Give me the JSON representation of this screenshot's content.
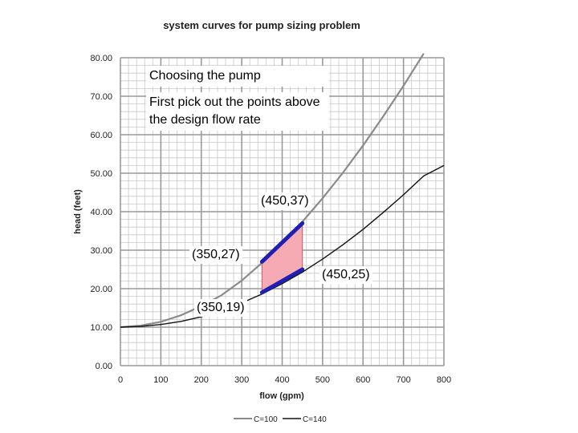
{
  "chart_data": {
    "type": "line",
    "title": "system curves for pump sizing problem",
    "xlabel": "flow (gpm)",
    "ylabel": "head (feet)",
    "xlim": [
      0,
      800
    ],
    "ylim": [
      0,
      80
    ],
    "x_ticks": [
      "0",
      "100",
      "200",
      "300",
      "400",
      "500",
      "600",
      "700",
      "800"
    ],
    "y_ticks": [
      "0.00",
      "10.00",
      "20.00",
      "30.00",
      "40.00",
      "50.00",
      "60.00",
      "70.00",
      "80.00"
    ],
    "grid": true,
    "series": [
      {
        "name": "C=100",
        "color": "#8a8a8a",
        "x": [
          0,
          50,
          100,
          150,
          200,
          250,
          300,
          350,
          400,
          450,
          500,
          550,
          600,
          650,
          700,
          750
        ],
        "y": [
          10,
          10.4,
          11.4,
          13.1,
          15.5,
          18.3,
          22.1,
          26.7,
          31.8,
          37.4,
          43.5,
          50.1,
          57.2,
          64.8,
          72.7,
          81.1
        ]
      },
      {
        "name": "C=140",
        "color": "#111111",
        "x": [
          0,
          50,
          100,
          150,
          200,
          250,
          300,
          350,
          400,
          450,
          500,
          550,
          600,
          650,
          700,
          750,
          800
        ],
        "y": [
          10,
          10.2,
          10.7,
          11.5,
          12.7,
          14.2,
          16.3,
          18.6,
          21.3,
          24.3,
          27.7,
          31.4,
          35.4,
          39.8,
          44.4,
          49.3,
          52.0
        ]
      }
    ],
    "highlight": {
      "fill": "#f5aab4",
      "line_color": "#1f1fb4",
      "points": [
        {
          "label": "(350,27)",
          "x": 350,
          "y": 27
        },
        {
          "label": "(450,37)",
          "x": 450,
          "y": 37
        },
        {
          "label": "(450,25)",
          "x": 450,
          "y": 25
        },
        {
          "label": "(350,19)",
          "x": 350,
          "y": 19
        }
      ]
    },
    "annotations": {
      "heading": "Choosing the pump",
      "body": "First pick out the points above the design flow rate"
    },
    "legend": {
      "position": "bottom-center",
      "items": [
        "C=100",
        "C=140"
      ]
    }
  }
}
